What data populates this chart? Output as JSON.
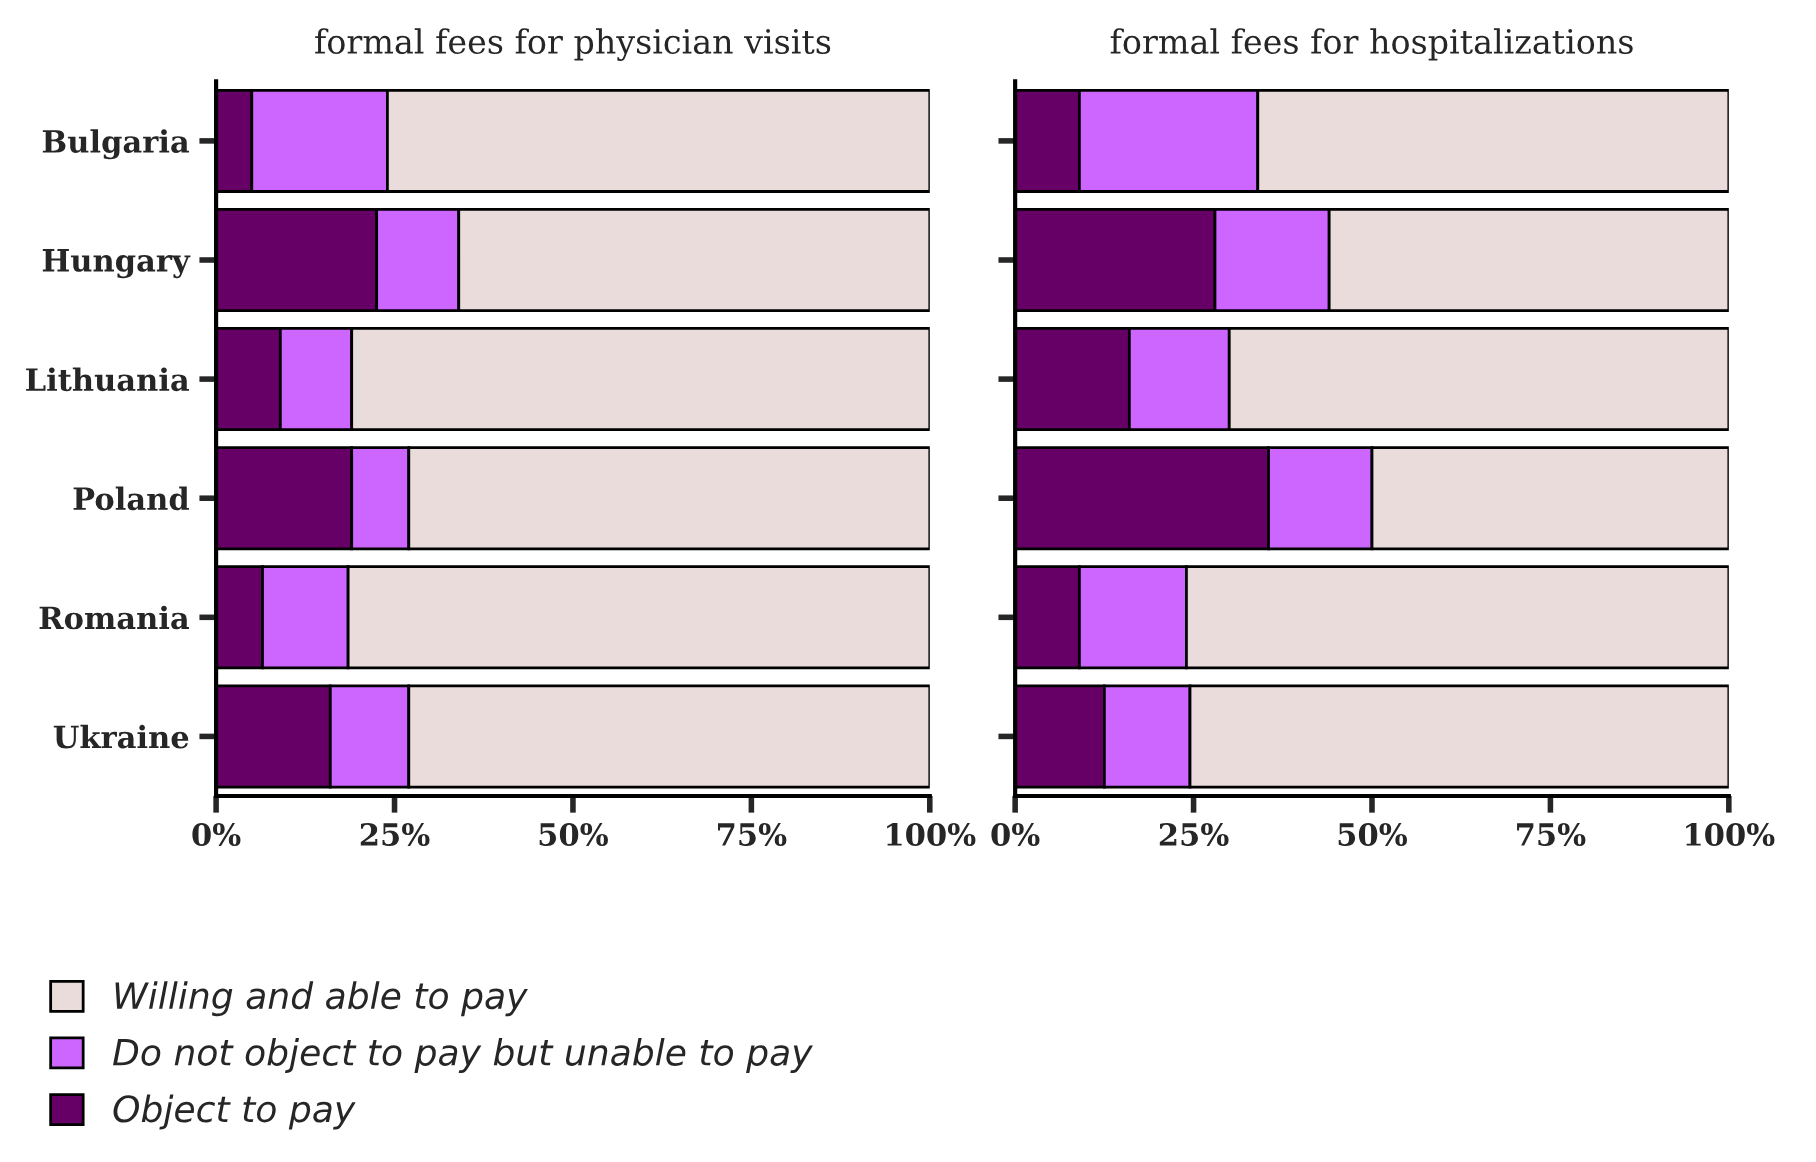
{
  "chart_data": [
    {
      "type": "bar",
      "orientation": "horizontal",
      "stacked": true,
      "title": "formal fees for physician visits",
      "categories": [
        "Bulgaria",
        "Hungary",
        "Lithuania",
        "Poland",
        "Romania",
        "Ukraine"
      ],
      "series": [
        {
          "name": "Object to pay",
          "color": "#660066",
          "values": [
            5,
            22.5,
            9,
            19,
            6.5,
            16
          ]
        },
        {
          "name": "Do not object to pay but unable to pay",
          "color": "#cc66ff",
          "values": [
            19,
            11.5,
            10,
            8,
            12,
            11
          ]
        },
        {
          "name": "Willing and able to pay",
          "color": "#ebdcdc",
          "values": [
            76,
            66,
            81,
            73,
            81.5,
            73
          ]
        }
      ],
      "xlim": [
        0,
        100
      ],
      "xticks": [
        {
          "value": 0,
          "label": "0%"
        },
        {
          "value": 25,
          "label": "25%"
        },
        {
          "value": 50,
          "label": "50%"
        },
        {
          "value": 75,
          "label": "75%"
        },
        {
          "value": 100,
          "label": "100%"
        }
      ],
      "grid": false,
      "legend": "bottom left"
    },
    {
      "type": "bar",
      "orientation": "horizontal",
      "stacked": true,
      "title": "formal fees for hospitalizations",
      "categories": [
        null,
        null,
        null,
        null,
        null,
        null
      ],
      "series": [
        {
          "color": "#660066",
          "values": [
            9,
            28,
            16,
            35.5,
            9,
            12.5
          ]
        },
        {
          "color": "#cc66ff",
          "values": [
            25,
            16,
            14,
            14.5,
            15,
            12
          ]
        },
        {
          "color": "#ebdcdc",
          "values": [
            66,
            56,
            70,
            50,
            76,
            75.5
          ]
        }
      ],
      "xlim": [
        0,
        100
      ],
      "xticks": [
        {
          "value": 0,
          "label": "0%"
        },
        {
          "value": 25,
          "label": "25%"
        },
        {
          "value": 50,
          "label": "50%"
        },
        {
          "value": 75,
          "label": "75%"
        },
        {
          "value": 100,
          "label": "100%"
        }
      ],
      "grid": false,
      "tick_labels": "x"
    }
  ]
}
